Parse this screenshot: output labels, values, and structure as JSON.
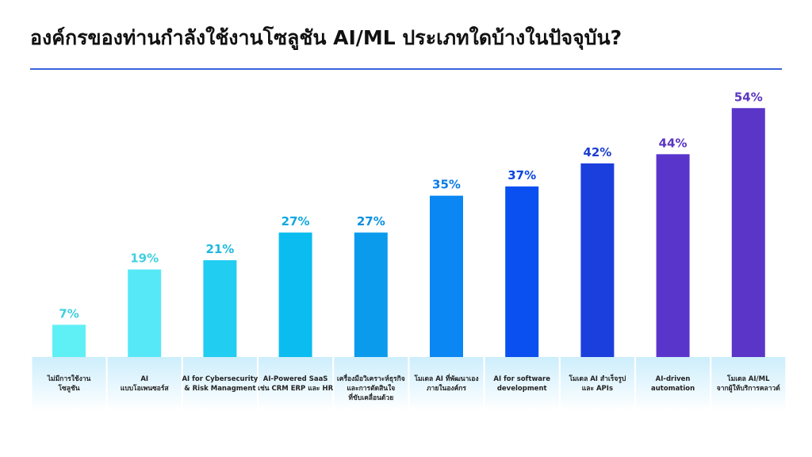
{
  "header": {
    "title": "องค์กรของท่านกำลังใช้งานโซลูชัน AI/ML ประเภทใดบ้างในปัจจุบัน?"
  },
  "colors": {
    "rule": "#3a63e0",
    "label_band_top": "#cdeefc",
    "label_band_bottom": "#ffffff"
  },
  "chart_data": {
    "type": "bar",
    "title": "องค์กรของท่านกำลังใช้งานโซลูชัน AI/ML ประเภทใดบ้างในปัจจุบัน?",
    "xlabel": "",
    "ylabel": "",
    "ylim": [
      0,
      60
    ],
    "grid": false,
    "legend": "none",
    "categories": [
      [
        "ไม่มีการใช้งาน",
        "โซลูชัน"
      ],
      [
        "AI",
        "แบบโอเพนซอร์ส"
      ],
      [
        "AI for Cybersecurity",
        "& Risk Managment"
      ],
      [
        "AI-Powered SaaS",
        "เช่น CRM ERP และ HR"
      ],
      [
        "เครื่องมือวิเคราะห์ธุรกิจ",
        "และการตัดสินใจ",
        "ที่ขับเคลื่อนด้วย"
      ],
      [
        "โมเดล AI ที่พัฒนาเอง",
        "ภายในองค์กร"
      ],
      [
        "AI for software",
        "development"
      ],
      [
        "โมเดล AI สำเร็จรูป",
        "และ APIs"
      ],
      [
        "AI-driven",
        "automation"
      ],
      [
        "โมเดล AI/ML",
        "จากผู้ให้บริการคลาวด์"
      ]
    ],
    "values": [
      7,
      19,
      21,
      27,
      27,
      35,
      37,
      42,
      44,
      54
    ],
    "value_labels": [
      "7%",
      "19%",
      "21%",
      "27%",
      "27%",
      "35%",
      "37%",
      "42%",
      "44%",
      "54%"
    ],
    "bar_colors": [
      "#5ff0f6",
      "#57e8f8",
      "#22cdf2",
      "#0abcf0",
      "#0a9bed",
      "#0a87f2",
      "#0a4ff0",
      "#1b3fdc",
      "#5a35cc",
      "#5a35c8"
    ],
    "label_colors": [
      "#3fd0e0",
      "#3fd0e0",
      "#1fb8e0",
      "#10a8e0",
      "#0a90e0",
      "#0a7ce8",
      "#0a46e0",
      "#1b3fd0",
      "#5a35c0",
      "#5a35c0"
    ]
  }
}
